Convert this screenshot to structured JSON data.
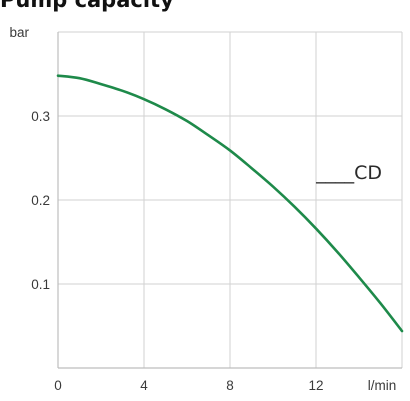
{
  "chart_data": {
    "type": "line",
    "title": "Pump capacity",
    "ylabel": "bar",
    "xlabel": "l/min",
    "xlim": [
      0,
      16
    ],
    "ylim": [
      0,
      0.4
    ],
    "x_ticks": [
      0,
      4,
      8,
      12
    ],
    "x_tick_labels": [
      "0",
      "4",
      "8",
      "12"
    ],
    "y_ticks": [
      0.1,
      0.2,
      0.3
    ],
    "y_tick_labels": [
      "0.1",
      "0.2",
      "0.3"
    ],
    "grid": true,
    "colors": {
      "line": "#1e8a4a",
      "grid": "#d2d2d2",
      "axis": "#bdbdbd"
    },
    "series": [
      {
        "name": "CD",
        "x": [
          0,
          1,
          2,
          3,
          4,
          5,
          6,
          7,
          8,
          9,
          10,
          11,
          12,
          13,
          14,
          15,
          16
        ],
        "y": [
          0.348,
          0.345,
          0.338,
          0.33,
          0.32,
          0.308,
          0.294,
          0.277,
          0.259,
          0.238,
          0.216,
          0.192,
          0.166,
          0.138,
          0.108,
          0.077,
          0.044
        ]
      }
    ],
    "annotations": [
      {
        "text": "____CD",
        "x": 12.1,
        "y": 0.225
      }
    ]
  }
}
